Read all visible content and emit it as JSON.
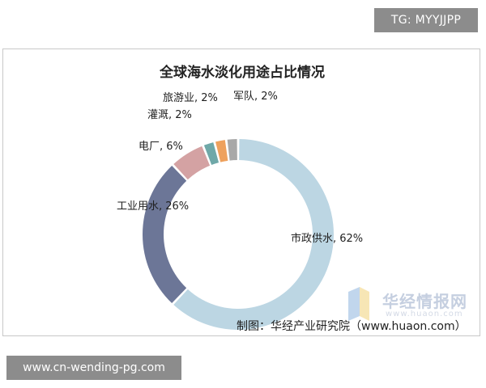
{
  "badges": {
    "top_right": "TG: MYYJJPP",
    "bottom_left": "www.cn-wending-pg.com"
  },
  "chart_data": {
    "type": "pie",
    "donut": true,
    "title": "全球海水淡化用途占比情况",
    "slices": [
      {
        "label": "市政供水",
        "value": 62,
        "color": "#bcd6e3",
        "display": "市政供水, 62%"
      },
      {
        "label": "工业用水",
        "value": 26,
        "color": "#6c7697",
        "display": "工业用水, 26%"
      },
      {
        "label": "电厂",
        "value": 6,
        "color": "#d4a2a3",
        "display": "电厂, 6%"
      },
      {
        "label": "灌溉",
        "value": 2,
        "color": "#6fa8a8",
        "display": "灌溉, 2%"
      },
      {
        "label": "旅游业",
        "value": 2,
        "color": "#eea15d",
        "display": "旅游业, 2%"
      },
      {
        "label": "军队",
        "value": 2,
        "color": "#a8a8a8",
        "display": "军队, 2%"
      }
    ],
    "source": "制图：华经产业研究院（www.huaon.com）",
    "watermark": {
      "name": "华经情报网",
      "url": "www.huaon.com"
    }
  }
}
